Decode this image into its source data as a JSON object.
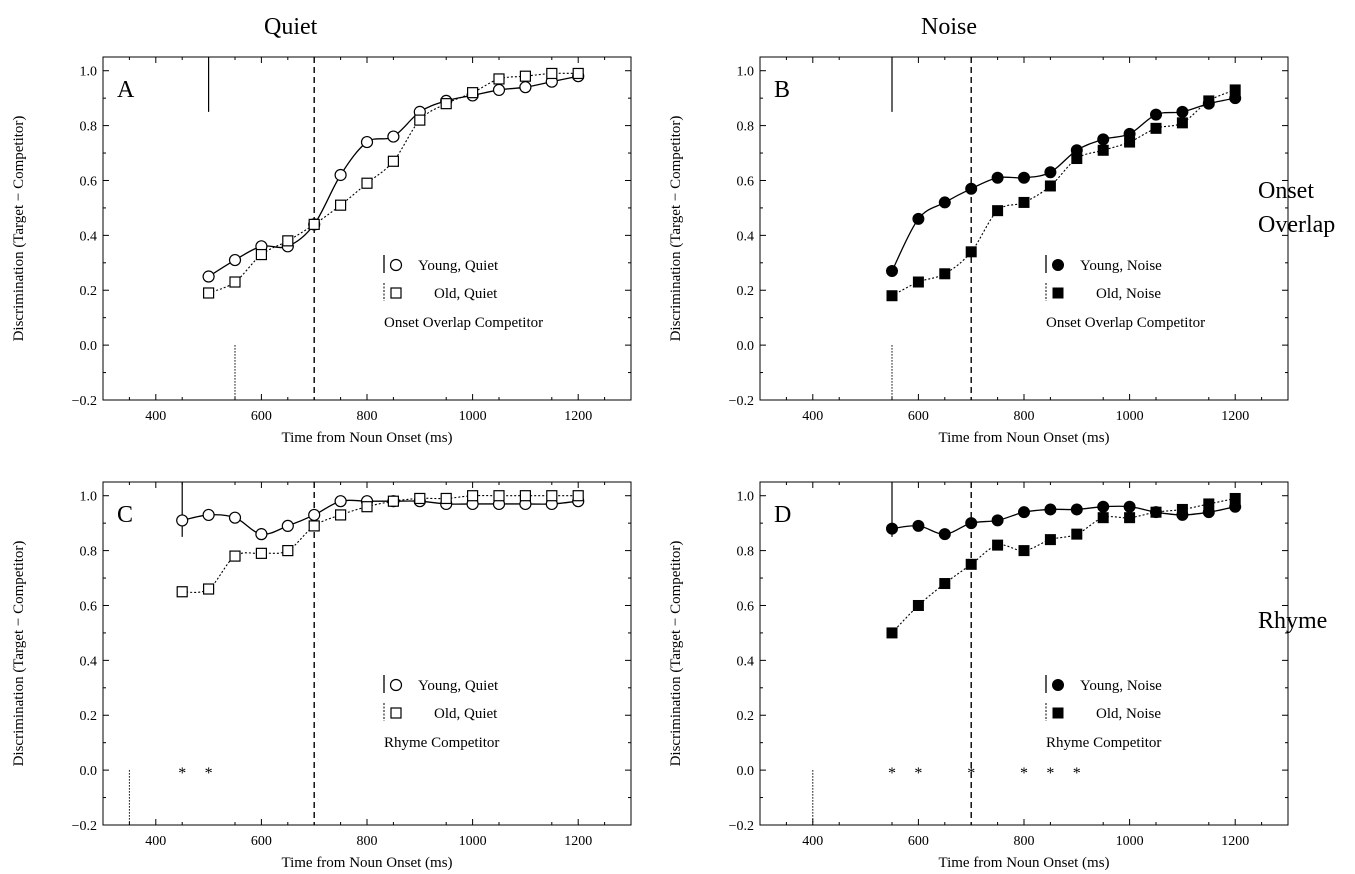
{
  "column_titles": [
    "Quiet",
    "Noise"
  ],
  "row_labels": [
    "Onset\nOverlap",
    "Rhyme"
  ],
  "axes_common": {
    "xlabel": "Time from Noun Onset (ms)",
    "ylabel": "Discrimination (Target  −  Competitor)",
    "xlim": [
      300,
      1300
    ],
    "ylim": [
      -0.2,
      1.05
    ],
    "xticks": [
      400,
      600,
      800,
      1000,
      1200
    ],
    "yticks": [
      -0.2,
      0.0,
      0.2,
      0.4,
      0.6,
      0.8,
      1.0
    ],
    "ytick_labels": [
      "−0.2",
      "0.0",
      "0.2",
      "0.4",
      "0.6",
      "0.8",
      "1.0"
    ],
    "grid": false
  },
  "chart_data": [
    {
      "type": "line",
      "panel": "A",
      "legend_title": "Onset Overlap Competitor",
      "legend_position": "lower-right",
      "reference_lines": {
        "dashed_vertical_x": 700,
        "young_solid_marker_x": 500,
        "old_dotted_marker_x": 550
      },
      "asterisks_x": [],
      "series": [
        {
          "name": "Young, Quiet",
          "marker": "open-circle",
          "line": "solid",
          "x": [
            500,
            550,
            600,
            650,
            700,
            750,
            800,
            850,
            900,
            950,
            1000,
            1050,
            1100,
            1150,
            1200
          ],
          "y": [
            0.25,
            0.31,
            0.36,
            0.36,
            0.44,
            0.62,
            0.74,
            0.76,
            0.85,
            0.89,
            0.91,
            0.93,
            0.94,
            0.96,
            0.98
          ]
        },
        {
          "name": "Old, Quiet",
          "marker": "open-square",
          "line": "dotted",
          "x": [
            500,
            550,
            600,
            650,
            700,
            750,
            800,
            850,
            900,
            950,
            1000,
            1050,
            1100,
            1150,
            1200
          ],
          "y": [
            0.19,
            0.23,
            0.33,
            0.38,
            0.44,
            0.51,
            0.59,
            0.67,
            0.82,
            0.88,
            0.92,
            0.97,
            0.98,
            0.99,
            0.99
          ]
        }
      ]
    },
    {
      "type": "line",
      "panel": "B",
      "legend_title": "Onset Overlap Competitor",
      "legend_position": "lower-right",
      "reference_lines": {
        "dashed_vertical_x": 700,
        "young_solid_marker_x": 550,
        "old_dotted_marker_x": 550
      },
      "asterisks_x": [],
      "series": [
        {
          "name": "Young, Noise",
          "marker": "filled-circle",
          "line": "solid",
          "x": [
            550,
            600,
            650,
            700,
            750,
            800,
            850,
            900,
            950,
            1000,
            1050,
            1100,
            1150,
            1200
          ],
          "y": [
            0.27,
            0.46,
            0.52,
            0.57,
            0.61,
            0.61,
            0.63,
            0.71,
            0.75,
            0.77,
            0.84,
            0.85,
            0.88,
            0.9
          ]
        },
        {
          "name": "Old, Noise",
          "marker": "filled-square",
          "line": "dotted",
          "x": [
            550,
            600,
            650,
            700,
            750,
            800,
            850,
            900,
            950,
            1000,
            1050,
            1100,
            1150,
            1200
          ],
          "y": [
            0.18,
            0.23,
            0.26,
            0.34,
            0.49,
            0.52,
            0.58,
            0.68,
            0.71,
            0.74,
            0.79,
            0.81,
            0.89,
            0.93
          ]
        }
      ]
    },
    {
      "type": "line",
      "panel": "C",
      "legend_title": "Rhyme Competitor",
      "legend_position": "lower-right",
      "reference_lines": {
        "dashed_vertical_x": 700,
        "young_solid_marker_x": 450,
        "old_dotted_marker_x": 350
      },
      "asterisks_x": [
        450,
        500
      ],
      "series": [
        {
          "name": "Young, Quiet",
          "marker": "open-circle",
          "line": "solid",
          "x": [
            450,
            500,
            550,
            600,
            650,
            700,
            750,
            800,
            850,
            900,
            950,
            1000,
            1050,
            1100,
            1150,
            1200
          ],
          "y": [
            0.91,
            0.93,
            0.92,
            0.86,
            0.89,
            0.93,
            0.98,
            0.98,
            0.98,
            0.98,
            0.97,
            0.97,
            0.97,
            0.97,
            0.97,
            0.98
          ]
        },
        {
          "name": "Old, Quiet",
          "marker": "open-square",
          "line": "dotted",
          "x": [
            450,
            500,
            550,
            600,
            650,
            700,
            750,
            800,
            850,
            900,
            950,
            1000,
            1050,
            1100,
            1150,
            1200
          ],
          "y": [
            0.65,
            0.66,
            0.78,
            0.79,
            0.8,
            0.89,
            0.93,
            0.96,
            0.98,
            0.99,
            0.99,
            1.0,
            1.0,
            1.0,
            1.0,
            1.0
          ]
        }
      ]
    },
    {
      "type": "line",
      "panel": "D",
      "legend_title": "Rhyme Competitor",
      "legend_position": "lower-right",
      "reference_lines": {
        "dashed_vertical_x": 700,
        "young_solid_marker_x": 550,
        "old_dotted_marker_x": 400
      },
      "asterisks_x": [
        550,
        600,
        700,
        800,
        850,
        900
      ],
      "series": [
        {
          "name": "Young, Noise",
          "marker": "filled-circle",
          "line": "solid",
          "x": [
            550,
            600,
            650,
            700,
            750,
            800,
            850,
            900,
            950,
            1000,
            1050,
            1100,
            1150,
            1200
          ],
          "y": [
            0.88,
            0.89,
            0.86,
            0.9,
            0.91,
            0.94,
            0.95,
            0.95,
            0.96,
            0.96,
            0.94,
            0.93,
            0.94,
            0.96
          ]
        },
        {
          "name": "Old, Noise",
          "marker": "filled-square",
          "line": "dotted",
          "x": [
            550,
            600,
            650,
            700,
            750,
            800,
            850,
            900,
            950,
            1000,
            1050,
            1100,
            1150,
            1200
          ],
          "y": [
            0.5,
            0.6,
            0.68,
            0.75,
            0.82,
            0.8,
            0.84,
            0.86,
            0.92,
            0.92,
            0.94,
            0.95,
            0.97,
            0.99
          ]
        }
      ]
    }
  ]
}
